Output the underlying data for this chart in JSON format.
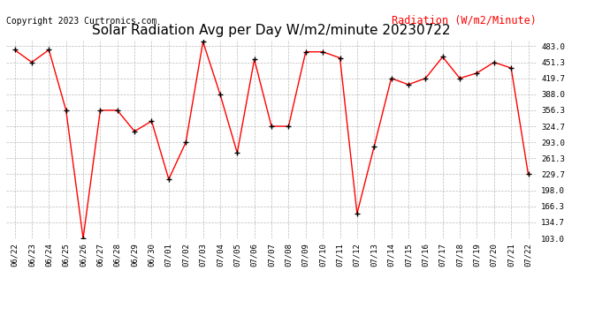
{
  "title": "Solar Radiation Avg per Day W/m2/minute 20230722",
  "copyright": "Copyright 2023 Curtronics.com",
  "legend_label": "Radiation (W/m2/Minute)",
  "dates": [
    "06/22",
    "06/23",
    "06/24",
    "06/25",
    "06/26",
    "06/27",
    "06/28",
    "06/29",
    "06/30",
    "07/01",
    "07/02",
    "07/03",
    "07/04",
    "07/05",
    "07/06",
    "07/07",
    "07/08",
    "07/09",
    "07/10",
    "07/11",
    "07/12",
    "07/13",
    "07/14",
    "07/15",
    "07/16",
    "07/17",
    "07/18",
    "07/19",
    "07/20",
    "07/21",
    "07/22"
  ],
  "values": [
    476.0,
    451.3,
    476.0,
    356.3,
    103.0,
    356.3,
    356.3,
    314.7,
    335.0,
    220.0,
    293.0,
    492.0,
    388.0,
    272.0,
    457.0,
    324.7,
    324.7,
    472.0,
    472.0,
    460.0,
    152.0,
    285.0,
    419.7,
    407.3,
    419.7,
    462.0,
    419.7,
    430.0,
    451.3,
    440.0,
    229.7
  ],
  "line_color": "red",
  "marker_color": "black",
  "bg_color": "white",
  "grid_color": "#bbbbbb",
  "ylim": [
    103.0,
    496.0
  ],
  "yticks": [
    103.0,
    134.7,
    166.3,
    198.0,
    229.7,
    261.3,
    293.0,
    324.7,
    356.3,
    388.0,
    419.7,
    451.3,
    483.0
  ],
  "title_fontsize": 11,
  "copyright_fontsize": 7,
  "legend_fontsize": 8.5,
  "tick_fontsize": 6.5,
  "fig_width": 6.9,
  "fig_height": 3.75,
  "dpi": 100
}
